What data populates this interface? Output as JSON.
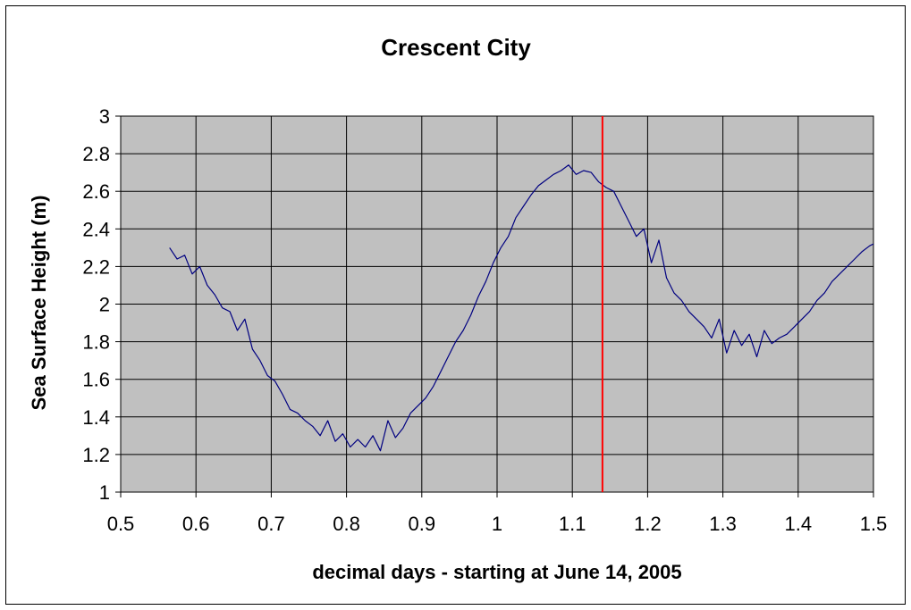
{
  "chart_data": {
    "type": "line",
    "title": "Crescent City",
    "xlabel": "decimal days - starting at June 14, 2005",
    "ylabel": "Sea Surface Height (m)",
    "xlim": [
      0.5,
      1.5
    ],
    "ylim": [
      1,
      3
    ],
    "x_ticks": [
      "0.5",
      "0.6",
      "0.7",
      "0.8",
      "0.9",
      "1",
      "1.1",
      "1.2",
      "1.3",
      "1.4",
      "1.5"
    ],
    "y_ticks": [
      "1",
      "1.2",
      "1.4",
      "1.6",
      "1.8",
      "2",
      "2.2",
      "2.4",
      "2.6",
      "2.8",
      "3"
    ],
    "grid": true,
    "legend": "none",
    "plot_background": "#c0c0c0",
    "series": [
      {
        "color": "#000080",
        "x": [
          0.565,
          0.575,
          0.585,
          0.595,
          0.605,
          0.615,
          0.625,
          0.635,
          0.645,
          0.655,
          0.665,
          0.675,
          0.685,
          0.695,
          0.705,
          0.715,
          0.725,
          0.735,
          0.745,
          0.755,
          0.765,
          0.775,
          0.785,
          0.795,
          0.805,
          0.815,
          0.825,
          0.835,
          0.845,
          0.855,
          0.865,
          0.875,
          0.885,
          0.895,
          0.905,
          0.915,
          0.925,
          0.935,
          0.945,
          0.955,
          0.965,
          0.975,
          0.985,
          0.995,
          1.005,
          1.015,
          1.025,
          1.035,
          1.045,
          1.055,
          1.065,
          1.075,
          1.085,
          1.095,
          1.105,
          1.115,
          1.125,
          1.135,
          1.145,
          1.155,
          1.165,
          1.175,
          1.185,
          1.195,
          1.205,
          1.215,
          1.225,
          1.235,
          1.245,
          1.255,
          1.265,
          1.275,
          1.285,
          1.295,
          1.305,
          1.315,
          1.325,
          1.335,
          1.345,
          1.355,
          1.365,
          1.375,
          1.385,
          1.395,
          1.405,
          1.415,
          1.425,
          1.435,
          1.445,
          1.455,
          1.465,
          1.475,
          1.485,
          1.495,
          1.5
        ],
        "y": [
          2.3,
          2.24,
          2.26,
          2.16,
          2.2,
          2.1,
          2.05,
          1.98,
          1.96,
          1.86,
          1.92,
          1.76,
          1.7,
          1.62,
          1.59,
          1.52,
          1.44,
          1.42,
          1.38,
          1.35,
          1.3,
          1.38,
          1.27,
          1.31,
          1.24,
          1.28,
          1.24,
          1.3,
          1.22,
          1.38,
          1.29,
          1.34,
          1.42,
          1.46,
          1.5,
          1.56,
          1.64,
          1.72,
          1.8,
          1.86,
          1.94,
          2.04,
          2.12,
          2.22,
          2.3,
          2.36,
          2.46,
          2.52,
          2.58,
          2.63,
          2.66,
          2.69,
          2.71,
          2.74,
          2.69,
          2.71,
          2.7,
          2.65,
          2.62,
          2.6,
          2.52,
          2.44,
          2.36,
          2.4,
          2.22,
          2.34,
          2.14,
          2.06,
          2.02,
          1.96,
          1.92,
          1.88,
          1.82,
          1.92,
          1.74,
          1.86,
          1.78,
          1.84,
          1.72,
          1.86,
          1.79,
          1.82,
          1.84,
          1.88,
          1.92,
          1.96,
          2.02,
          2.06,
          2.12,
          2.16,
          2.2,
          2.24,
          2.28,
          2.31,
          2.32
        ]
      }
    ],
    "reference_line": {
      "x": 1.14,
      "color": "#ff0000"
    }
  }
}
